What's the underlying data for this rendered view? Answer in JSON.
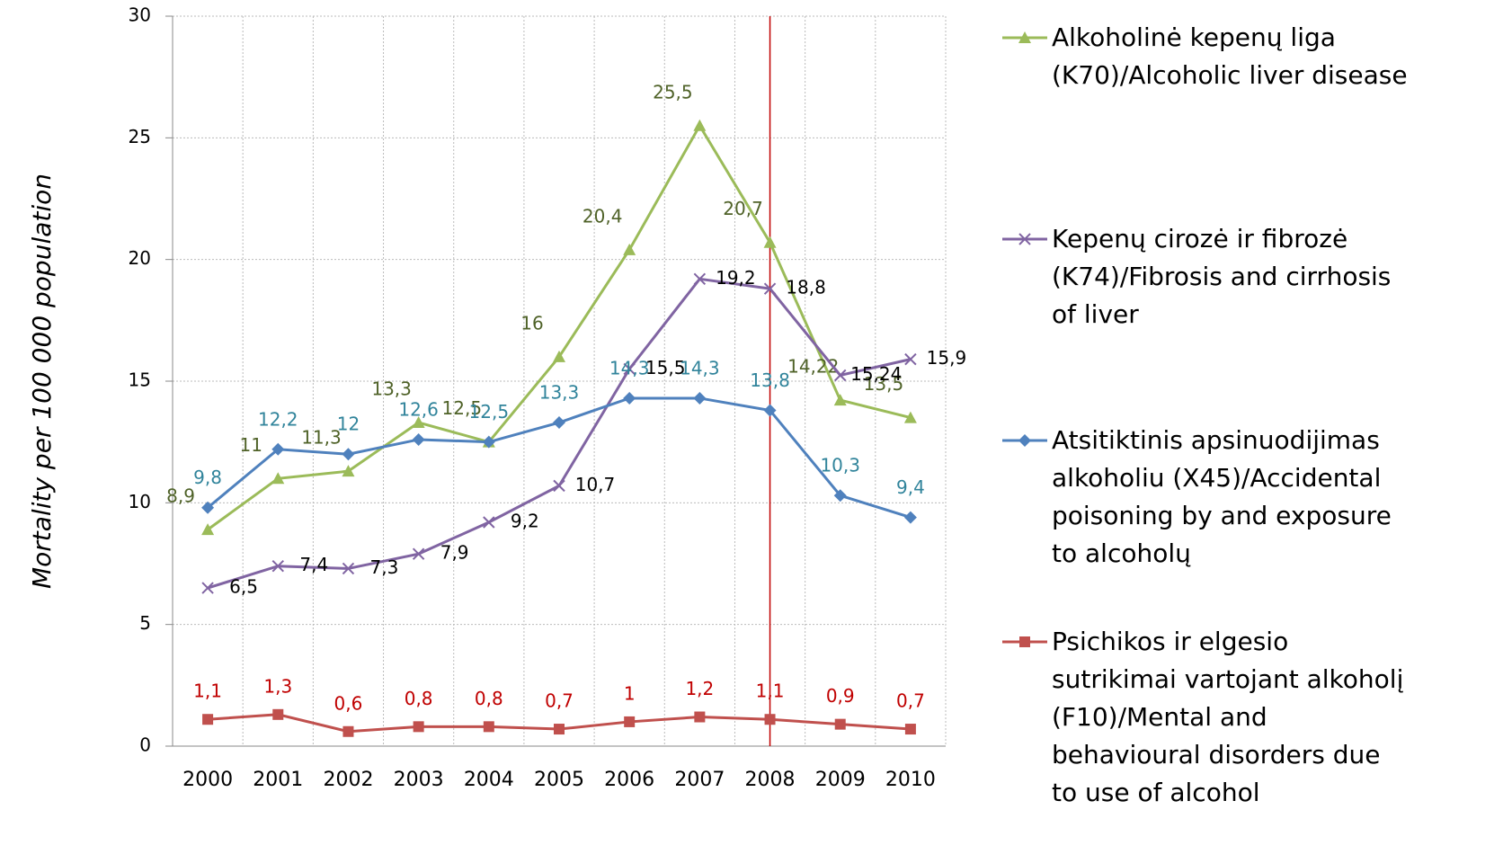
{
  "chart_data": {
    "type": "line",
    "y_label": "Mortality per 100 000 population",
    "categories": [
      "2000",
      "2001",
      "2002",
      "2003",
      "2004",
      "2005",
      "2006",
      "2007",
      "2008",
      "2009",
      "2010"
    ],
    "series": [
      {
        "name": "Alkoholinė kepenų liga (K70)/Alcoholic liver disease",
        "color": "#9bbb59",
        "label_color": "#4f6228",
        "marker": "triangle",
        "values": [
          8.9,
          11,
          11.3,
          13.3,
          12.5,
          16,
          20.4,
          25.5,
          20.7,
          14.22,
          13.5
        ],
        "value_labels": [
          "8,9",
          "11",
          "11,3",
          "13,3",
          "12,5",
          "16",
          "20,4",
          "25,5",
          "20,7",
          "14,22",
          "13,5"
        ]
      },
      {
        "name": "Kepenų cirozė ir fibrozė (K74)/Fibrosis and cirrhosis of liver",
        "color": "#8064a2",
        "label_color": "#000000",
        "marker": "x",
        "values": [
          6.5,
          7.4,
          7.3,
          7.9,
          9.2,
          10.7,
          15.5,
          19.2,
          18.8,
          15.24,
          15.9
        ],
        "value_labels": [
          "6,5",
          "7,4",
          "7,3",
          "7,9",
          "9,2",
          "10,7",
          "15,5",
          "19,2",
          "18,8",
          "15,24",
          "15,9"
        ]
      },
      {
        "name": "Atsitiktinis apsinuodijimas alkoholiu (X45)/Accidental poisoning by and exposure to alcoholų",
        "color": "#4f81bd",
        "label_color": "#31849b",
        "marker": "diamond",
        "values": [
          9.8,
          12.2,
          12,
          12.6,
          12.5,
          13.3,
          14.3,
          14.3,
          13.8,
          10.3,
          9.4
        ],
        "value_labels": [
          "9,8",
          "12,2",
          "12",
          "12,6",
          "12,5",
          "13,3",
          "14,3",
          "14,3",
          "13,8",
          "10,3",
          "9,4"
        ]
      },
      {
        "name": "Psichikos ir elgesio sutrikimai vartojant alkoholį (F10)/Mental and behavioural disorders due to use of alcohol",
        "color": "#c0504d",
        "label_color": "#c00000",
        "marker": "square",
        "values": [
          1.1,
          1.3,
          0.6,
          0.8,
          0.8,
          0.7,
          1,
          1.2,
          1.1,
          0.9,
          0.7
        ],
        "value_labels": [
          "1,1",
          "1,3",
          "0,6",
          "0,8",
          "0,8",
          "0,7",
          "1",
          "1,2",
          "1,1",
          "0,9",
          "0,7"
        ]
      }
    ],
    "ylim": [
      0,
      30
    ],
    "yticks": [
      0,
      5,
      10,
      15,
      20,
      25,
      30
    ],
    "grid": true,
    "vertical_line": {
      "category": "2008",
      "color": "#c00000"
    },
    "legend": "right"
  }
}
